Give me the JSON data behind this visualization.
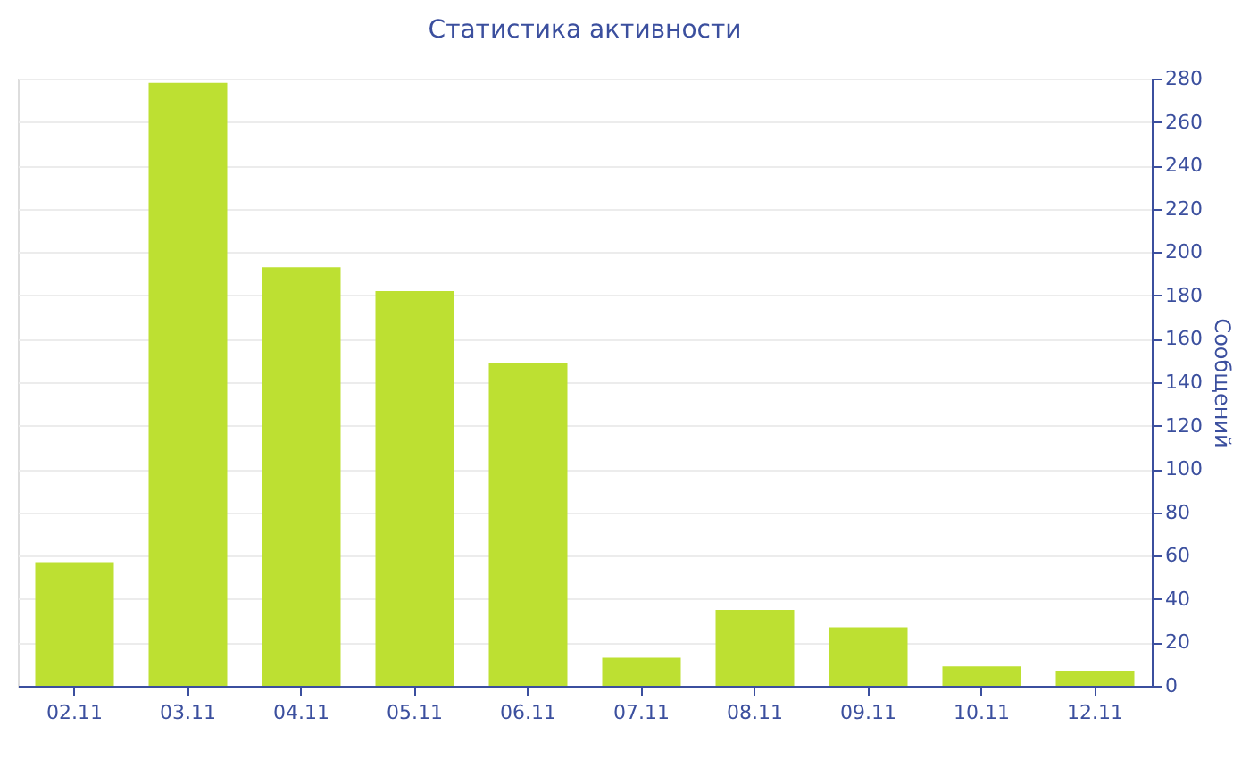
{
  "chart_data": {
    "type": "bar",
    "title": "Статистика активности",
    "ylabel": "Сообщений",
    "categories": [
      "02.11",
      "03.11",
      "04.11",
      "05.11",
      "06.11",
      "07.11",
      "08.11",
      "09.11",
      "10.11",
      "12.11"
    ],
    "values": [
      57,
      278,
      193,
      182,
      149,
      13,
      35,
      27,
      9,
      7
    ],
    "color": "#bde032",
    "ylim": [
      0,
      280
    ],
    "yticks": [
      0,
      20,
      40,
      60,
      80,
      100,
      120,
      140,
      160,
      180,
      200,
      220,
      240,
      260,
      280
    ],
    "grid": "y"
  }
}
